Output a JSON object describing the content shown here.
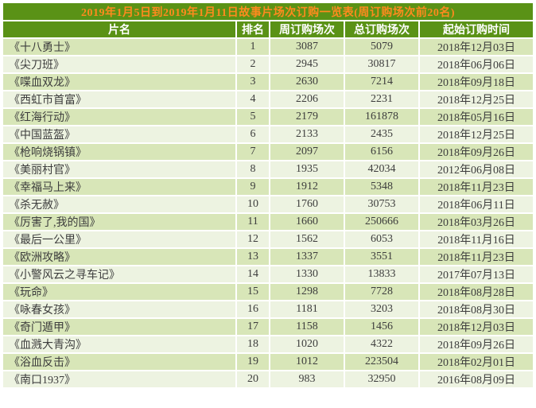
{
  "title": "2019年1月5日到2019年1月11日故事片场次订购一览表(周订购场次前20名)",
  "colors": {
    "header_background_green": "#5a9216",
    "title_text_orange": "#ff8a1e",
    "row_odd_green": "#d8e6b8",
    "row_even_green": "#edf3e1",
    "cell_text": "#3d3d3d",
    "header_text": "#ffffff"
  },
  "chart_data": {
    "type": "table",
    "title": "2019年1月5日到2019年1月11日故事片场次订购一览表(周订购场次前20名)",
    "columns": [
      "片名",
      "排名",
      "周订购场次",
      "总订购场次",
      "起始订购时间"
    ],
    "rows": [
      [
        "《十八勇士》",
        1,
        3087,
        5079,
        "2018年12月03日"
      ],
      [
        "《尖刀班》",
        2,
        2945,
        30817,
        "2018年06月06日"
      ],
      [
        "《喋血双龙》",
        3,
        2630,
        7214,
        "2018年09月18日"
      ],
      [
        "《西虹市首富》",
        4,
        2206,
        2231,
        "2018年12月25日"
      ],
      [
        "《红海行动》",
        5,
        2179,
        161878,
        "2018年05月16日"
      ],
      [
        "《中国蓝盔》",
        6,
        2133,
        2435,
        "2018年12月25日"
      ],
      [
        "《枪响烧锅镇》",
        7,
        2097,
        6156,
        "2018年09月26日"
      ],
      [
        "《美丽村官》",
        8,
        1935,
        42034,
        "2012年06月08日"
      ],
      [
        "《幸福马上来》",
        9,
        1912,
        5348,
        "2018年11月23日"
      ],
      [
        "《杀无赦》",
        10,
        1760,
        30753,
        "2018年06月11日"
      ],
      [
        "《厉害了,我的国》",
        11,
        1660,
        250666,
        "2018年03月26日"
      ],
      [
        "《最后一公里》",
        12,
        1562,
        6053,
        "2018年11月16日"
      ],
      [
        "《欧洲攻略》",
        13,
        1337,
        3551,
        "2018年11月23日"
      ],
      [
        "《小警风云之寻车记》",
        14,
        1330,
        13833,
        "2017年07月13日"
      ],
      [
        "《玩命》",
        15,
        1298,
        7728,
        "2018年08月28日"
      ],
      [
        "《咏春女孩》",
        16,
        1181,
        3203,
        "2018年08月30日"
      ],
      [
        "《奇门遁甲》",
        17,
        1158,
        1456,
        "2018年12月03日"
      ],
      [
        "《血溅大青沟》",
        18,
        1020,
        4322,
        "2018年09月26日"
      ],
      [
        "《浴血反击》",
        19,
        1012,
        223504,
        "2018年02月01日"
      ],
      [
        "《南口1937》",
        20,
        983,
        32950,
        "2016年08月09日"
      ]
    ]
  }
}
